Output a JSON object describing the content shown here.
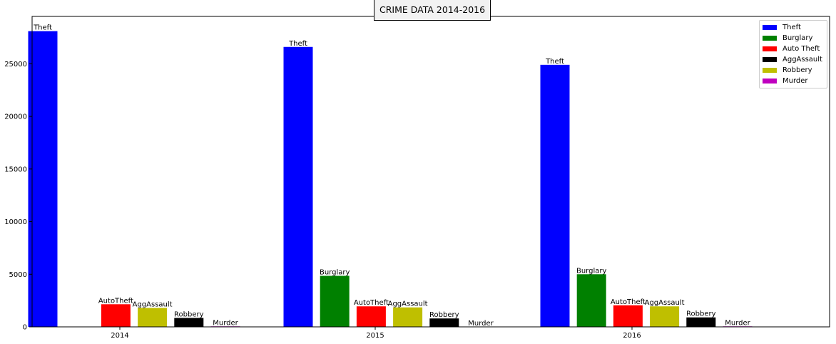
{
  "chart_data": {
    "type": "bar",
    "title": "CRIME DATA 2014-2016",
    "xlabel": "",
    "ylabel": "",
    "categories": [
      "2014",
      "2015",
      "2016"
    ],
    "ylim": [
      0,
      29500
    ],
    "yticks": [
      0,
      5000,
      10000,
      15000,
      20000,
      25000
    ],
    "legend_position": "top-right",
    "grid": false,
    "series": [
      {
        "name": "Theft",
        "color": "#0000ff",
        "bar_label": "Theft",
        "values": [
          28100,
          26600,
          24900
        ]
      },
      {
        "name": "Burglary",
        "color": "#008000",
        "bar_label": "Burglary",
        "values": [
          0,
          4850,
          5000
        ]
      },
      {
        "name": "Auto Theft",
        "color": "#ff0000",
        "bar_label": "AutoTheft",
        "values": [
          2150,
          1950,
          2050
        ]
      },
      {
        "name": "AggAssault",
        "color": "#000000",
        "bar_label": "AggAssault",
        "values": [
          1800,
          1850,
          1950
        ]
      },
      {
        "name": "Robbery",
        "color": "#bfbf00",
        "bar_label": "Robbery",
        "values": [
          850,
          800,
          900
        ]
      },
      {
        "name": "Murder",
        "color": "#bf00bf",
        "bar_label": "Murder",
        "values": [
          50,
          0,
          50
        ]
      }
    ]
  }
}
